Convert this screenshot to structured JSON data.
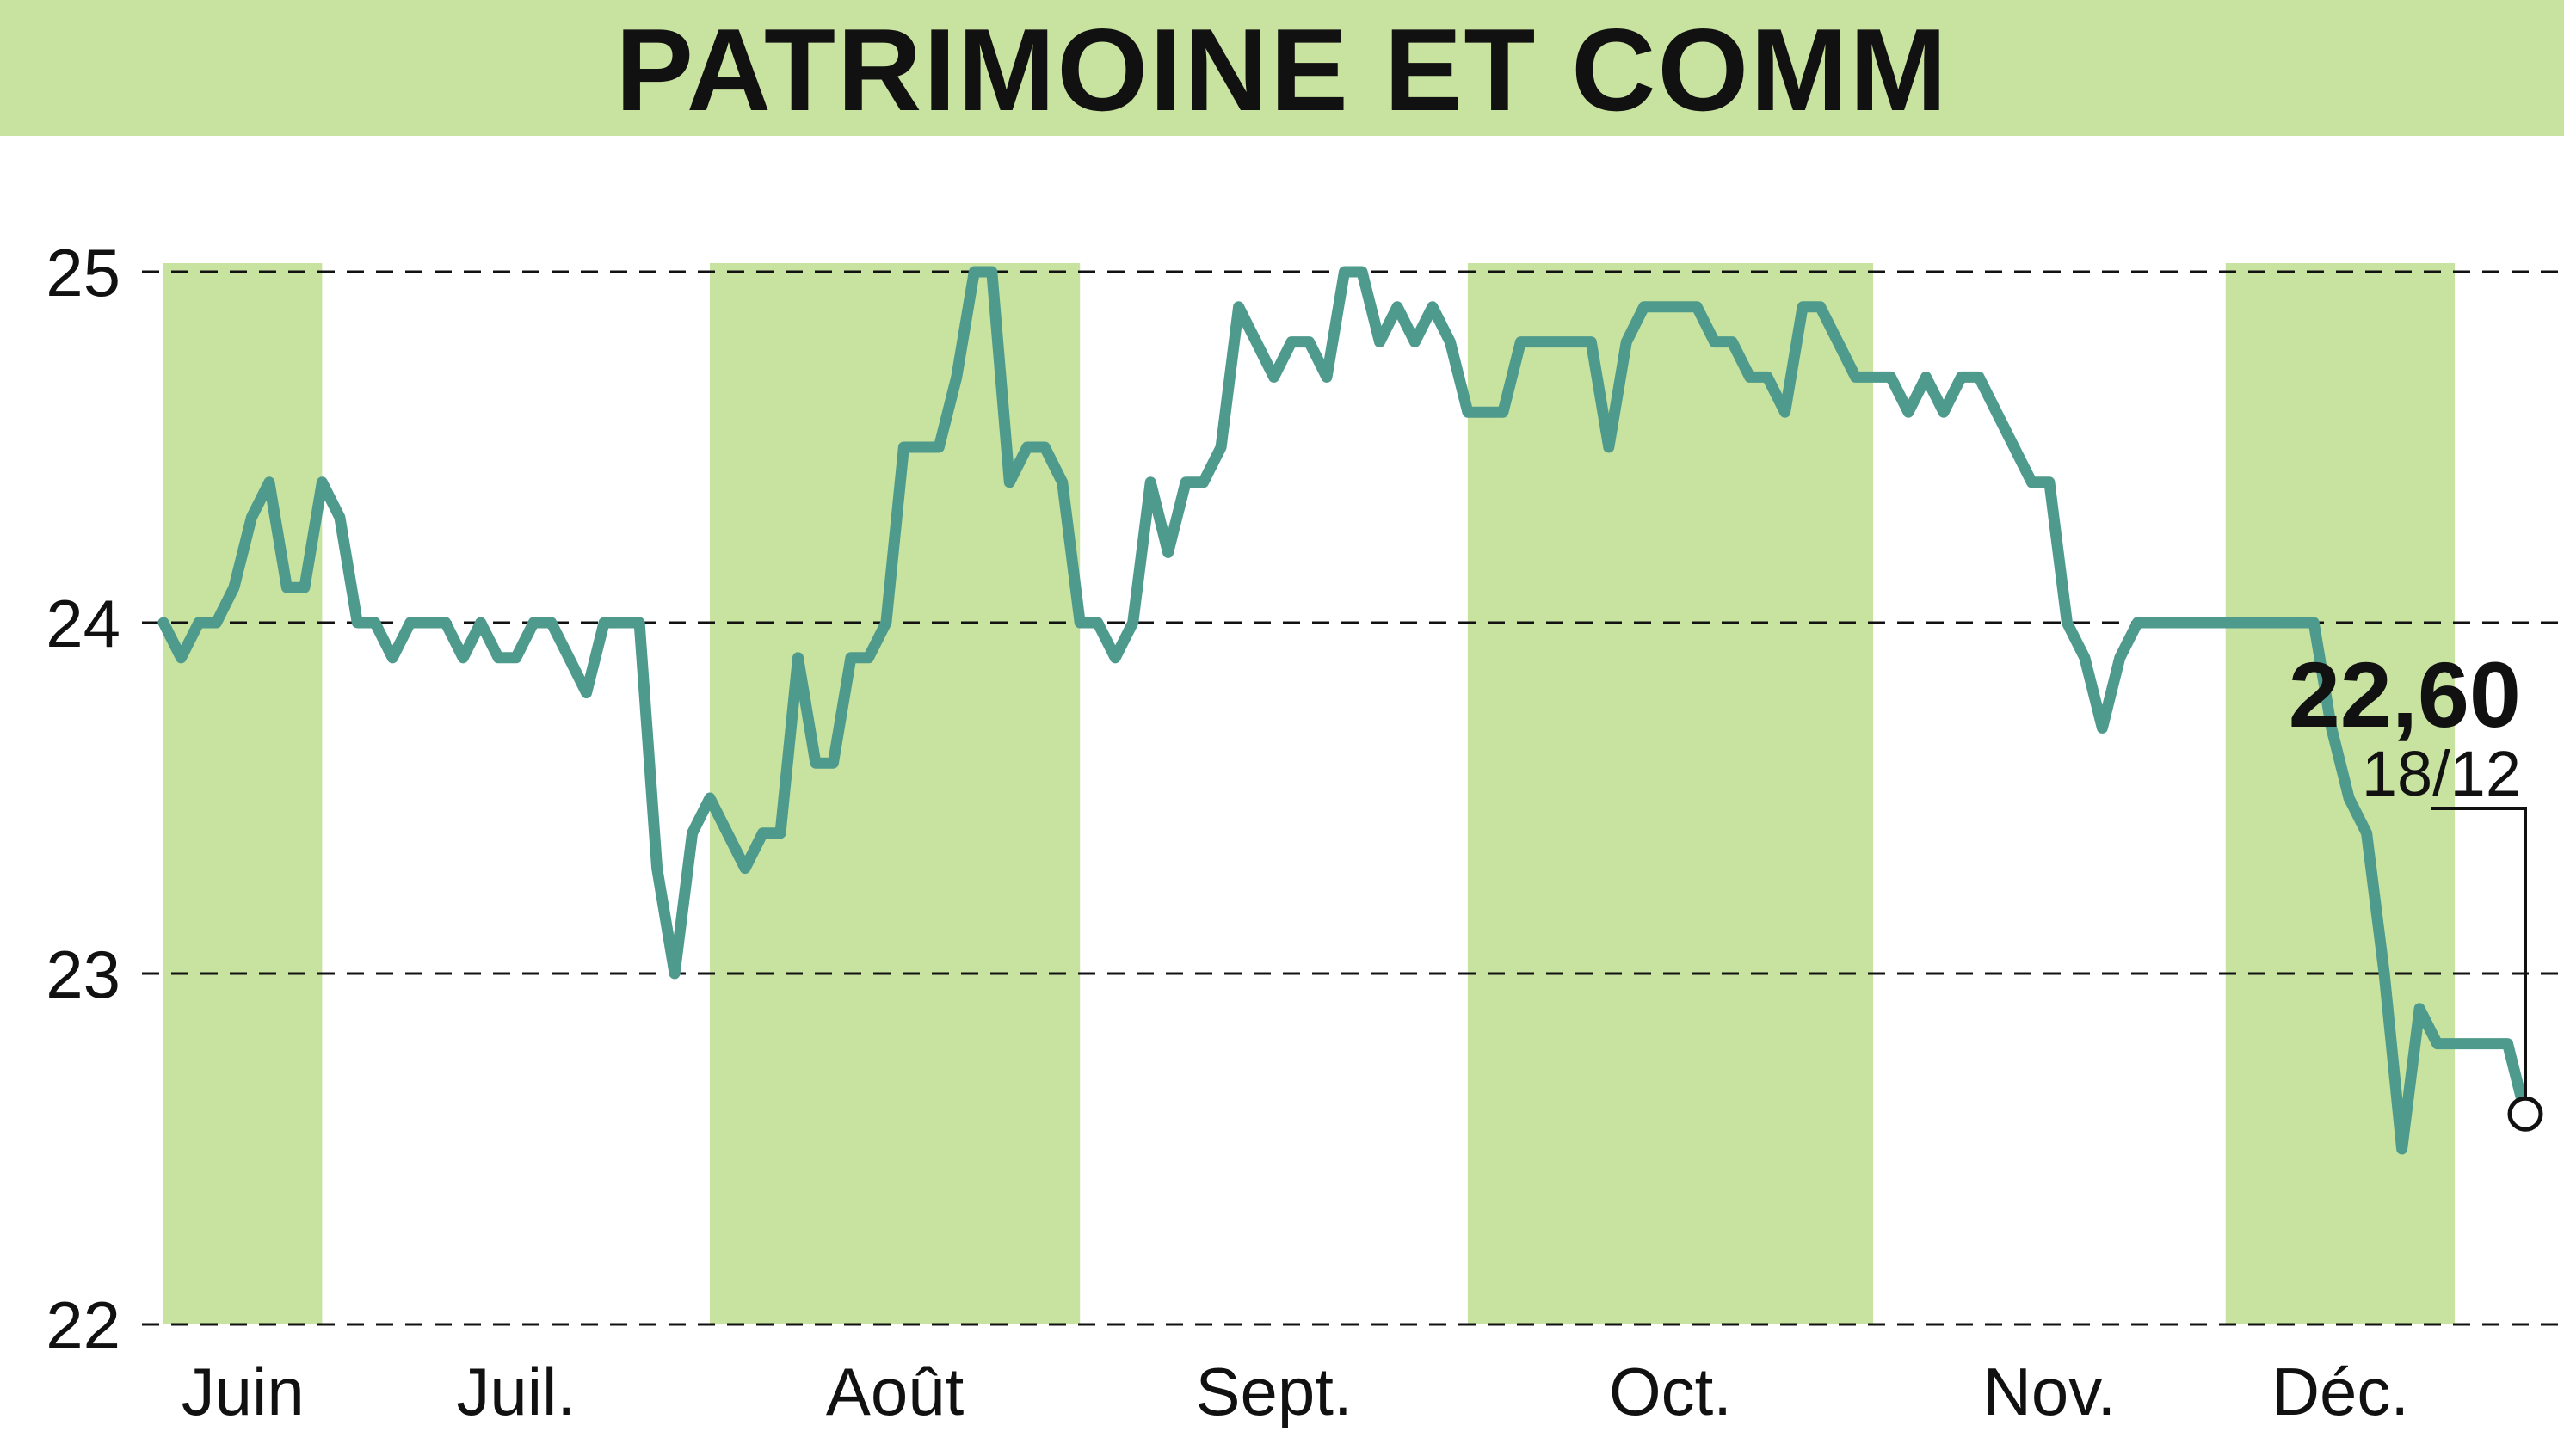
{
  "title": "PATRIMOINE ET COMM",
  "colors": {
    "header_band": "#c8e2a0",
    "shade": "#c8e2a0",
    "line": "#4e9a8c",
    "grid": "#111111",
    "text": "#111111"
  },
  "chart_data": {
    "type": "line",
    "title": "PATRIMOINE ET COMM",
    "xlabel": "",
    "ylabel": "",
    "ylim": [
      22,
      25
    ],
    "y_ticks": [
      {
        "label": "22",
        "value": 22
      },
      {
        "label": "23",
        "value": 23
      },
      {
        "label": "24",
        "value": 24
      },
      {
        "label": "25",
        "value": 25
      }
    ],
    "grid": "horizontal dashed",
    "months": [
      {
        "label": "Juin",
        "start": 0,
        "end": 9,
        "shaded": true
      },
      {
        "label": "Juil.",
        "start": 9,
        "end": 31,
        "shaded": false
      },
      {
        "label": "Août",
        "start": 31,
        "end": 52,
        "shaded": true
      },
      {
        "label": "Sept.",
        "start": 52,
        "end": 74,
        "shaded": false
      },
      {
        "label": "Oct.",
        "start": 74,
        "end": 97,
        "shaded": true
      },
      {
        "label": "Nov.",
        "start": 97,
        "end": 117,
        "shaded": false
      },
      {
        "label": "Déc.",
        "start": 117,
        "end": 130,
        "shaded": true
      }
    ],
    "values": [
      24.0,
      23.9,
      24.0,
      24.0,
      24.1,
      24.3,
      24.4,
      24.1,
      24.1,
      24.4,
      24.3,
      24.0,
      24.0,
      23.9,
      24.0,
      24.0,
      24.0,
      23.9,
      24.0,
      23.9,
      23.9,
      24.0,
      24.0,
      23.9,
      23.8,
      24.0,
      24.0,
      24.0,
      23.3,
      23.0,
      23.4,
      23.5,
      23.4,
      23.3,
      23.4,
      23.4,
      23.9,
      23.6,
      23.6,
      23.9,
      23.9,
      24.0,
      24.5,
      24.5,
      24.5,
      24.7,
      25.0,
      25.0,
      24.4,
      24.5,
      24.5,
      24.4,
      24.0,
      24.0,
      23.9,
      24.0,
      24.4,
      24.2,
      24.4,
      24.4,
      24.5,
      24.9,
      24.8,
      24.7,
      24.8,
      24.8,
      24.7,
      25.0,
      25.0,
      24.8,
      24.9,
      24.8,
      24.9,
      24.8,
      24.6,
      24.6,
      24.6,
      24.8,
      24.8,
      24.8,
      24.8,
      24.8,
      24.5,
      24.8,
      24.9,
      24.9,
      24.9,
      24.9,
      24.8,
      24.8,
      24.7,
      24.7,
      24.6,
      24.9,
      24.9,
      24.8,
      24.7,
      24.7,
      24.7,
      24.6,
      24.7,
      24.6,
      24.7,
      24.7,
      24.6,
      24.5,
      24.4,
      24.4,
      24.0,
      23.9,
      23.7,
      23.9,
      24.0,
      24.0,
      24.0,
      24.0,
      24.0,
      24.0,
      24.0,
      24.0,
      24.0,
      24.0,
      24.0,
      23.7,
      23.5,
      23.4,
      23.0,
      22.5,
      22.9,
      22.8,
      22.8,
      22.8,
      22.8,
      22.8,
      22.6
    ],
    "last_value_label": "22,60",
    "last_date_label": "18/12"
  }
}
